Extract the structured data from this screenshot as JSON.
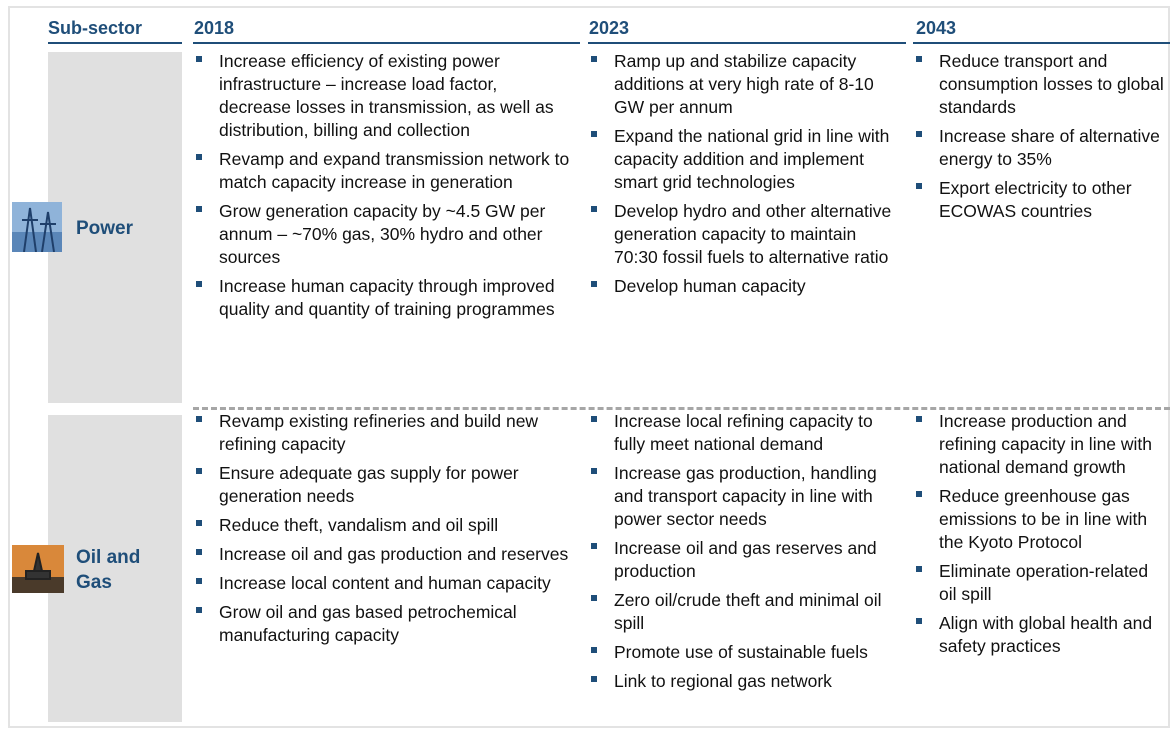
{
  "table": {
    "headers": [
      "Sub-sector",
      "2018",
      "2023",
      "2043"
    ],
    "rows": [
      {
        "sector": "Power",
        "cells": [
          [
            "Increase efficiency of existing power infrastructure – increase load factor, decrease losses in transmission, as well as distribution, billing and collection",
            "Revamp and expand transmission network to match capacity increase in generation",
            "Grow generation capacity by ~4.5 GW per annum – ~70% gas, 30% hydro and other sources",
            "Increase human capacity through improved quality and quantity of training programmes"
          ],
          [
            "Ramp up and stabilize capacity additions at very high rate of 8-10 GW per annum",
            "Expand the national grid in line with capacity addition and implement smart grid technologies",
            "Develop hydro and other alternative generation capacity to maintain 70:30 fossil fuels to alternative ratio",
            "Develop human capacity"
          ],
          [
            "Reduce transport and consumption losses to global standards",
            "Increase share of alternative energy to 35%",
            "Export electricity to other ECOWAS countries"
          ]
        ]
      },
      {
        "sector": "Oil and Gas",
        "cells": [
          [
            "Revamp existing refineries and build new refining capacity",
            "Ensure adequate gas supply for power generation needs",
            "Reduce theft, vandalism and oil spill",
            "Increase oil and gas production and reserves",
            "Increase local content and human capacity",
            "Grow oil and gas based petrochemical manufacturing capacity"
          ],
          [
            "Increase local refining capacity to fully meet national demand",
            "Increase gas production, handling and transport capacity in line with power sector needs",
            "Increase oil and gas reserves and production",
            "Zero oil/crude theft and minimal oil spill",
            "Promote use of sustainable fuels",
            "Link to regional gas network"
          ],
          [
            "Increase production and refining capacity in line with national demand growth",
            "Reduce greenhouse gas emissions to be in line with the Kyoto Protocol",
            "Eliminate operation-related oil spill",
            "Align with global health and safety practices"
          ]
        ]
      }
    ]
  }
}
